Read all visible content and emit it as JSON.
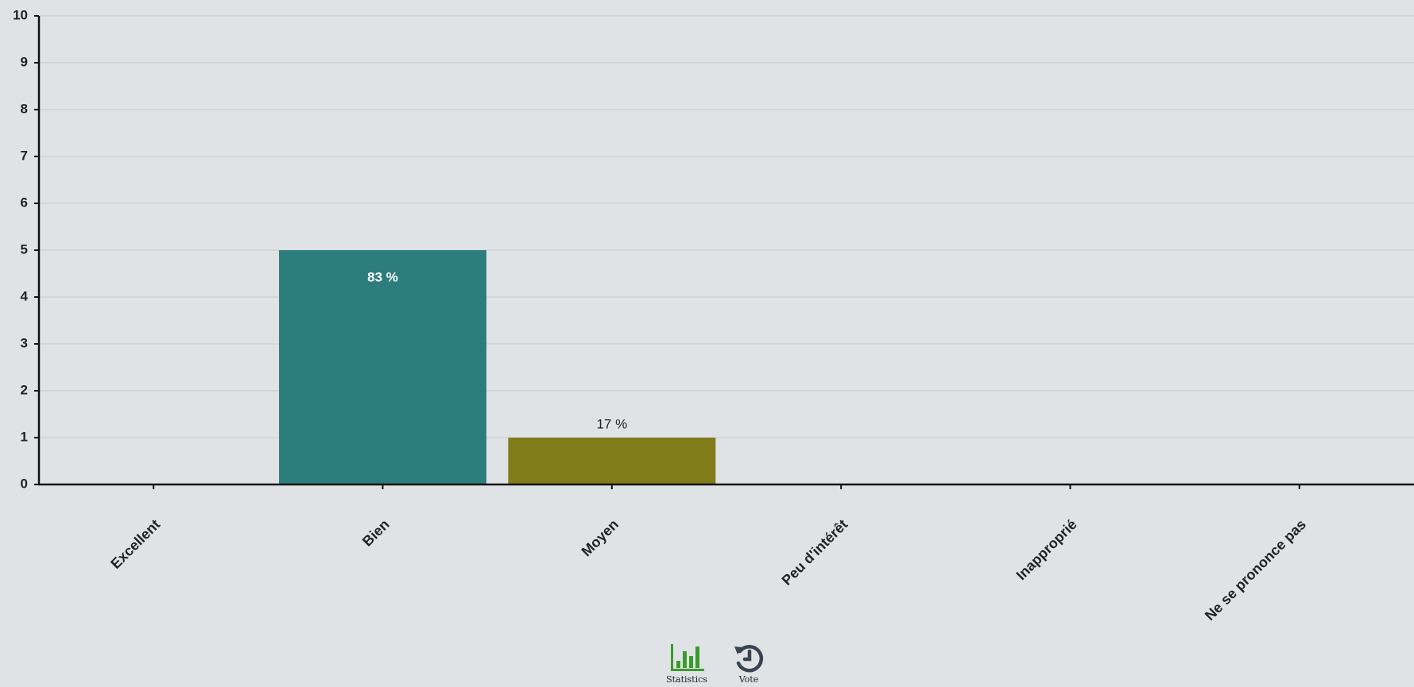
{
  "chart_data": {
    "type": "bar",
    "categories": [
      "Excellent",
      "Bien",
      "Moyen",
      "Peu d'intérêt",
      "Inapproprié",
      "Ne se prononce pas"
    ],
    "values": [
      0,
      5,
      1,
      0,
      0,
      0
    ],
    "data_labels": [
      "",
      "83 %",
      "17 %",
      "",
      "",
      ""
    ],
    "colors": [
      "#2e7d7d",
      "#2e7d7d",
      "#807c1a",
      "#2e7d7d",
      "#2e7d7d",
      "#2e7d7d"
    ],
    "ylim": [
      0,
      10
    ],
    "yticks": [
      0,
      1,
      2,
      3,
      4,
      5,
      6,
      7,
      8,
      9,
      10
    ],
    "grid": true,
    "title": "",
    "xlabel": "",
    "ylabel": ""
  },
  "nav": {
    "statistics_label": "Statistics",
    "vote_label": "Vote",
    "statistics_icon": "bar-chart-icon",
    "vote_icon": "history-icon",
    "statistics_color": "#3d9a2e",
    "vote_color": "#3a4450"
  }
}
